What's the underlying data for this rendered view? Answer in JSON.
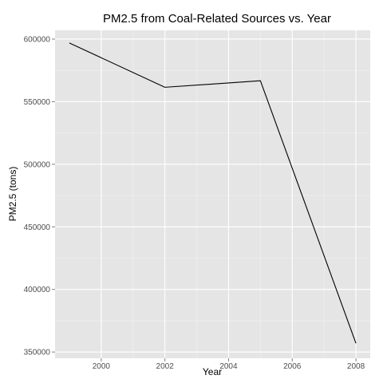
{
  "chart_data": {
    "type": "line",
    "title": "PM2.5 from Coal-Related Sources vs. Year",
    "xlabel": "Year",
    "ylabel": "PM2.5 (tons)",
    "x": [
      1999,
      2002,
      2005,
      2008
    ],
    "series": [
      {
        "values": [
          596900,
          561500,
          566700,
          357000
        ]
      }
    ],
    "xlim": [
      1998.55,
      2008.45
    ],
    "ylim": [
      345000,
      607000
    ],
    "xticks": [
      2000,
      2002,
      2004,
      2006,
      2008
    ],
    "yticks": [
      350000,
      400000,
      450000,
      500000,
      550000,
      600000
    ],
    "xtick_labels": [
      "2000",
      "2002",
      "2004",
      "2006",
      "2008"
    ],
    "ytick_labels": [
      "350000",
      "400000",
      "450000",
      "500000",
      "550000",
      "600000"
    ],
    "grid": true,
    "colors": {
      "panel": "#e5e5e5",
      "grid_major": "#ffffff",
      "grid_minor": "#f2f2f2",
      "line": "#000000"
    }
  }
}
